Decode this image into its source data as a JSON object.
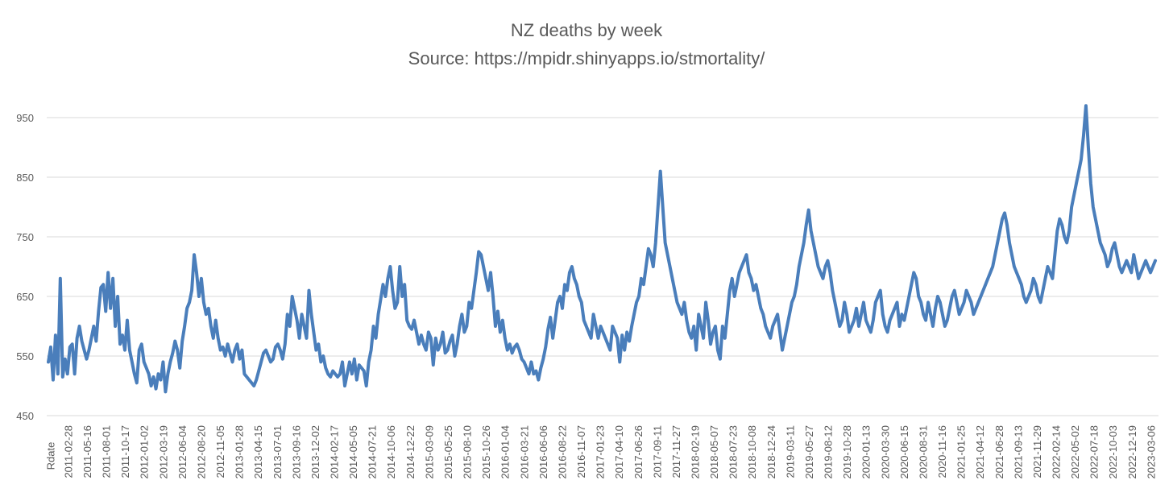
{
  "chart_data": {
    "type": "line",
    "title": "NZ deaths by week",
    "subtitle": "Source: https://mpidr.shinyapps.io/stmortality/",
    "xlabel": "",
    "ylabel": "",
    "category_header": "Rdate",
    "ylim": [
      450,
      970
    ],
    "yticks": [
      450,
      550,
      650,
      750,
      850,
      950
    ],
    "grid": true,
    "legend": "none",
    "series_color": "#4a7ebb",
    "x_ticks": [
      "2011-02-28",
      "2011-05-16",
      "2011-08-01",
      "2011-10-17",
      "2012-01-02",
      "2012-03-19",
      "2012-06-04",
      "2012-08-20",
      "2012-11-05",
      "2013-01-28",
      "2013-04-15",
      "2013-07-01",
      "2013-09-16",
      "2013-12-02",
      "2014-02-17",
      "2014-05-05",
      "2014-07-21",
      "2014-10-06",
      "2014-12-22",
      "2015-03-09",
      "2015-05-25",
      "2015-08-10",
      "2015-10-26",
      "2016-01-04",
      "2016-03-21",
      "2016-06-06",
      "2016-08-22",
      "2016-11-07",
      "2017-01-23",
      "2017-04-10",
      "2017-06-26",
      "2017-09-11",
      "2017-11-27",
      "2018-02-19",
      "2018-05-07",
      "2018-07-23",
      "2018-10-08",
      "2018-12-24",
      "2019-03-11",
      "2019-05-27",
      "2019-08-12",
      "2019-10-28",
      "2020-01-13",
      "2020-03-30",
      "2020-06-15",
      "2020-08-31",
      "2020-11-16",
      "2021-01-25",
      "2021-04-12",
      "2021-06-28",
      "2021-09-13",
      "2021-11-29",
      "2022-02-14",
      "2022-05-02",
      "2022-07-18",
      "2022-10-03",
      "2022-12-19",
      "2023-03-06"
    ],
    "series": [
      {
        "values": [
          540,
          565,
          510,
          585,
          520,
          680,
          515,
          545,
          520,
          565,
          570,
          520,
          580,
          600,
          575,
          560,
          545,
          560,
          580,
          600,
          575,
          625,
          665,
          670,
          625,
          690,
          630,
          680,
          600,
          650,
          570,
          585,
          560,
          610,
          560,
          540,
          520,
          505,
          560,
          570,
          540,
          530,
          520,
          500,
          515,
          495,
          520,
          510,
          540,
          490,
          520,
          540,
          555,
          575,
          560,
          530,
          575,
          600,
          630,
          640,
          660,
          720,
          690,
          650,
          680,
          640,
          620,
          630,
          600,
          580,
          610,
          580,
          560,
          565,
          550,
          570,
          555,
          540,
          560,
          570,
          545,
          560,
          520,
          515,
          510,
          505,
          500,
          510,
          525,
          540,
          555,
          560,
          550,
          540,
          545,
          565,
          570,
          560,
          545,
          570,
          620,
          600,
          650,
          630,
          610,
          580,
          620,
          600,
          580,
          660,
          620,
          590,
          560,
          570,
          540,
          550,
          530,
          520,
          515,
          525,
          520,
          515,
          520,
          540,
          500,
          520,
          540,
          520,
          545,
          510,
          535,
          530,
          525,
          500,
          540,
          560,
          600,
          580,
          620,
          645,
          670,
          650,
          680,
          700,
          660,
          630,
          640,
          700,
          650,
          670,
          610,
          600,
          595,
          610,
          590,
          570,
          585,
          570,
          560,
          590,
          580,
          535,
          580,
          560,
          570,
          590,
          555,
          560,
          575,
          585,
          550,
          570,
          600,
          620,
          590,
          600,
          640,
          630,
          660,
          690,
          725,
          720,
          700,
          680,
          660,
          690,
          650,
          600,
          625,
          590,
          610,
          580,
          560,
          570,
          555,
          565,
          570,
          560,
          545,
          540,
          530,
          520,
          540,
          520,
          525,
          510,
          530,
          545,
          565,
          595,
          615,
          580,
          610,
          640,
          650,
          630,
          670,
          660,
          690,
          700,
          680,
          670,
          650,
          640,
          610,
          600,
          590,
          580,
          620,
          600,
          580,
          600,
          590,
          580,
          570,
          560,
          600,
          590,
          580,
          540,
          585,
          560,
          590,
          575,
          600,
          620,
          640,
          650,
          680,
          670,
          700,
          730,
          720,
          700,
          740,
          800,
          860,
          800,
          740,
          720,
          700,
          680,
          660,
          640,
          630,
          620,
          640,
          610,
          590,
          580,
          600,
          560,
          620,
          600,
          580,
          640,
          610,
          570,
          590,
          600,
          560,
          545,
          600,
          580,
          620,
          660,
          680,
          650,
          670,
          690,
          700,
          710,
          720,
          690,
          680,
          660,
          670,
          650,
          630,
          620,
          600,
          590,
          580,
          600,
          610,
          620,
          590,
          560,
          580,
          600,
          620,
          640,
          650,
          670,
          700,
          720,
          740,
          770,
          795,
          760,
          740,
          720,
          700,
          690,
          680,
          700,
          710,
          690,
          660,
          640,
          620,
          600,
          610,
          640,
          620,
          590,
          600,
          610,
          630,
          600,
          620,
          640,
          610,
          600,
          590,
          610,
          640,
          650,
          660,
          620,
          600,
          590,
          610,
          620,
          630,
          640,
          600,
          620,
          610,
          630,
          650,
          670,
          690,
          680,
          650,
          640,
          620,
          610,
          640,
          620,
          600,
          630,
          650,
          640,
          620,
          600,
          610,
          630,
          650,
          660,
          640,
          620,
          630,
          640,
          660,
          650,
          640,
          620,
          630,
          640,
          650,
          660,
          670,
          680,
          690,
          700,
          720,
          740,
          760,
          780,
          790,
          770,
          740,
          720,
          700,
          690,
          680,
          670,
          650,
          640,
          650,
          660,
          680,
          670,
          650,
          640,
          660,
          680,
          700,
          690,
          680,
          720,
          760,
          780,
          770,
          750,
          740,
          760,
          800,
          820,
          840,
          860,
          880,
          920,
          970,
          900,
          840,
          800,
          780,
          760,
          740,
          730,
          720,
          700,
          710,
          730,
          740,
          720,
          700,
          690,
          700,
          710,
          700,
          690,
          720,
          700,
          680,
          690,
          700,
          710,
          700,
          690,
          700,
          710
        ]
      }
    ]
  }
}
